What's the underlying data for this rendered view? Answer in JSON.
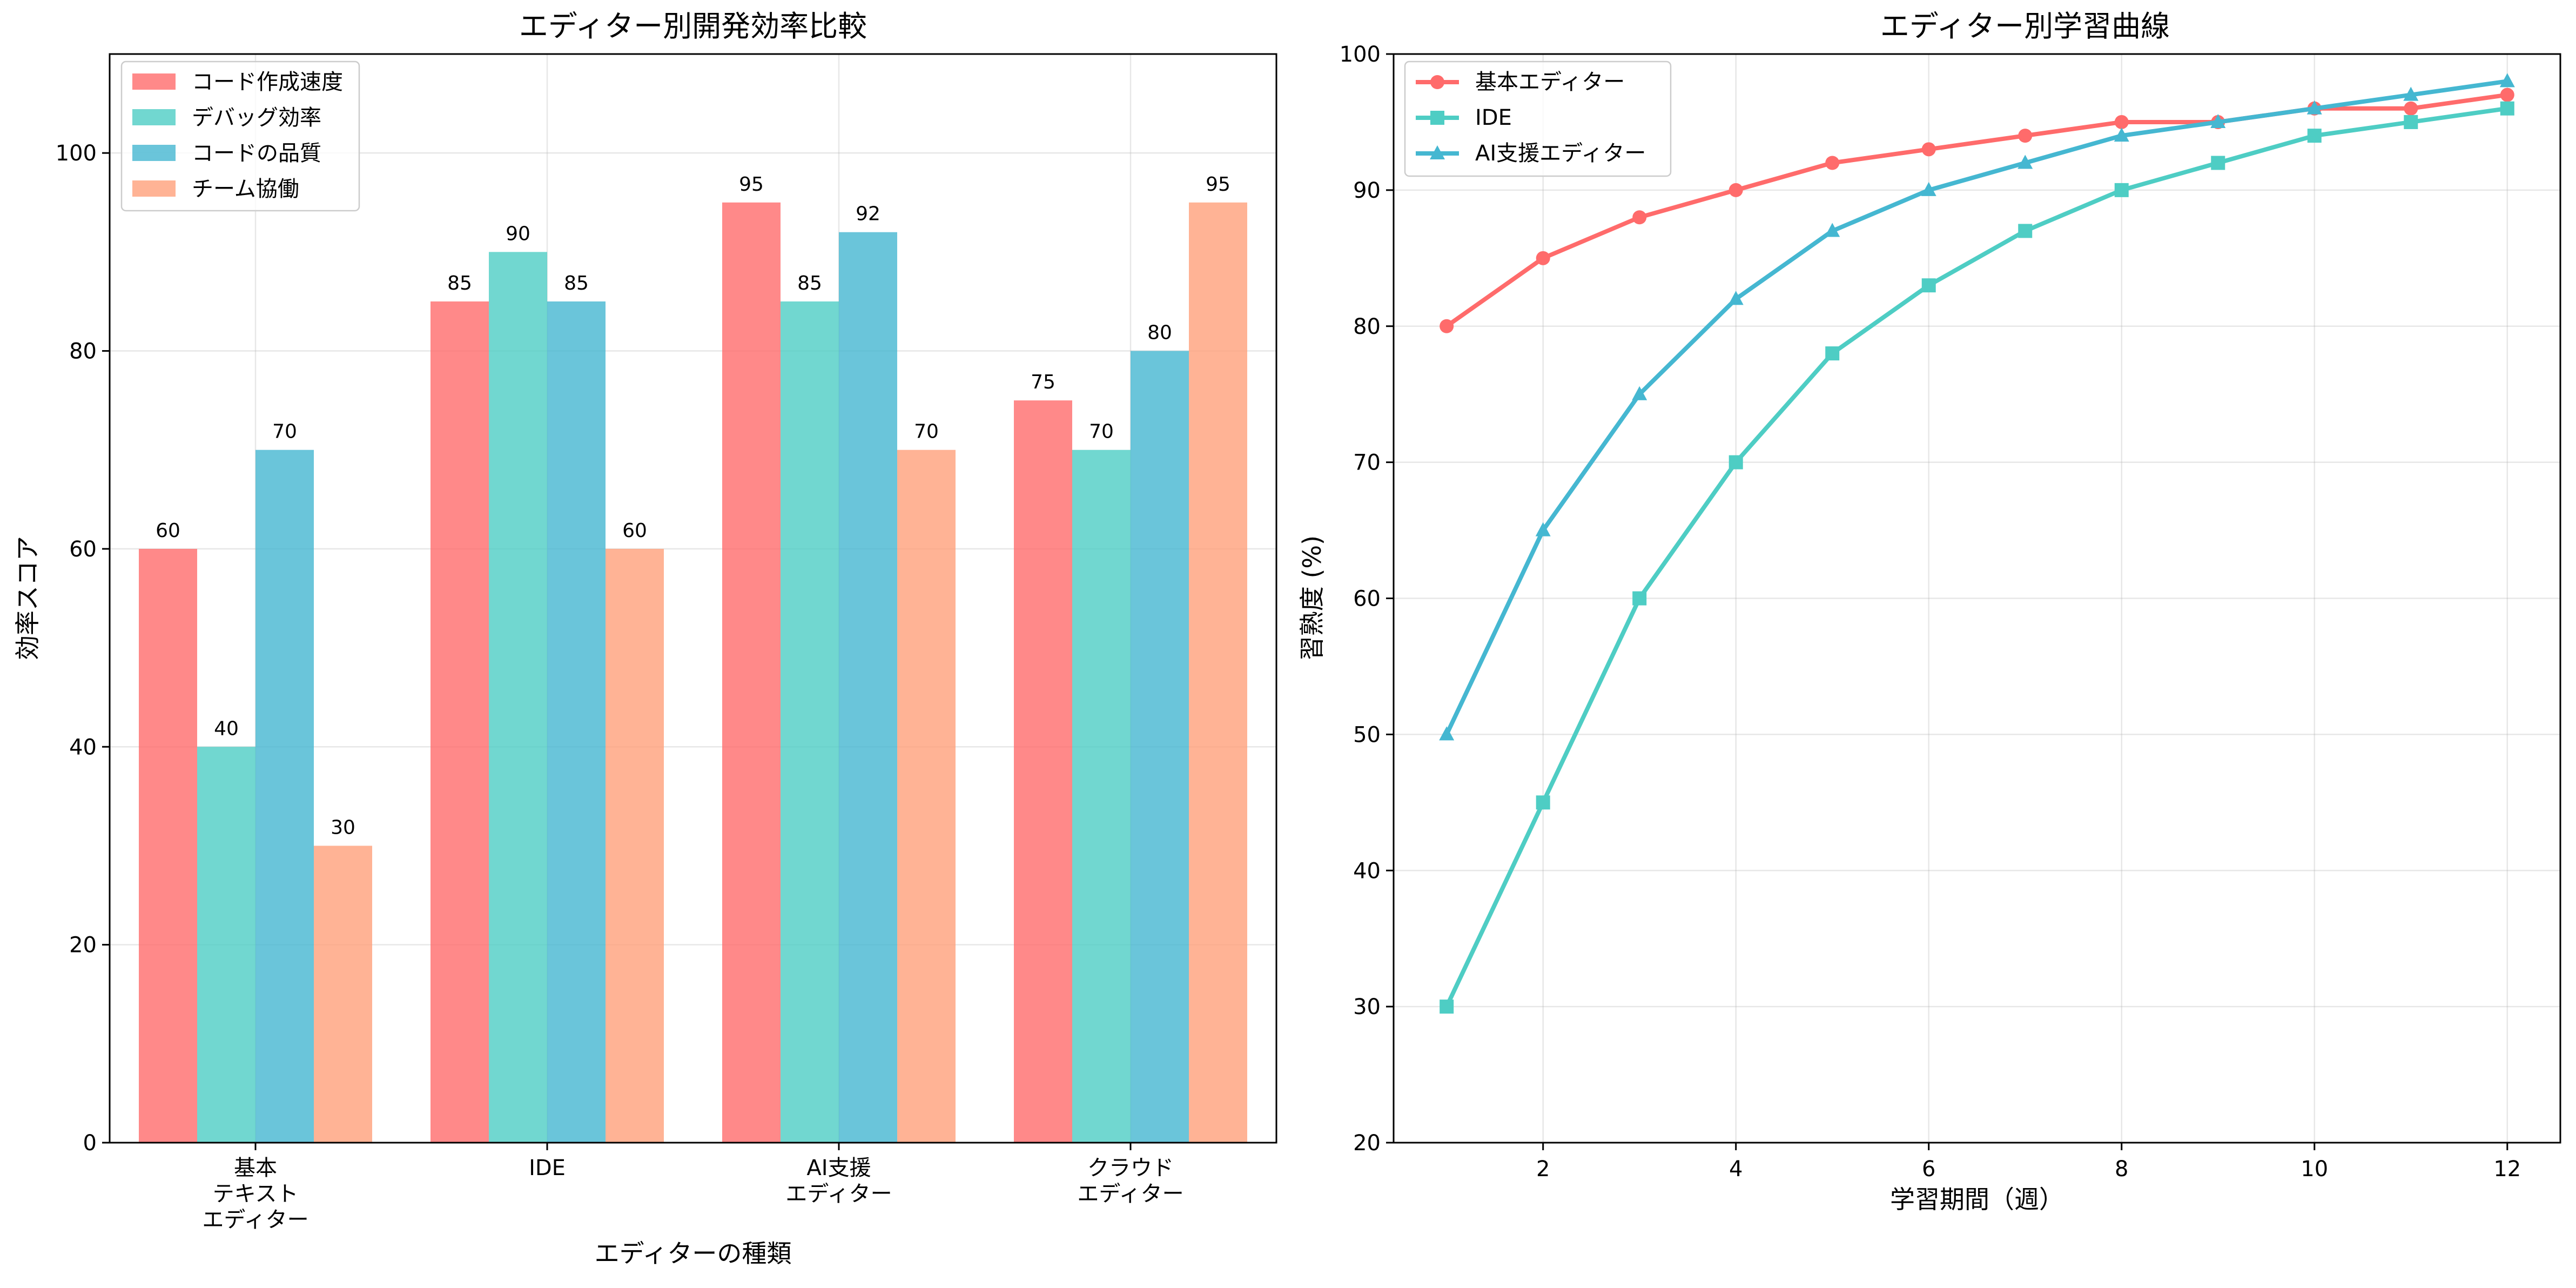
{
  "chart_data": [
    {
      "type": "bar",
      "title": "エディター別開発効率比較",
      "xlabel": "エディターの種類",
      "ylabel": "効率スコア",
      "categories": [
        "基本\nテキスト\nエディター",
        "IDE",
        "AI支援\nエディター",
        "クラウド\nエディター"
      ],
      "series": [
        {
          "name": "コード作成速度",
          "values": [
            60,
            85,
            95,
            75
          ],
          "color": "#FF6B6B"
        },
        {
          "name": "デバッグ効率",
          "values": [
            40,
            90,
            85,
            70
          ],
          "color": "#4ECDC4"
        },
        {
          "name": "コードの品質",
          "values": [
            70,
            85,
            92,
            80
          ],
          "color": "#45B7D1"
        },
        {
          "name": "チーム協働",
          "values": [
            30,
            60,
            70,
            95
          ],
          "color": "#FFA07A"
        }
      ],
      "ylim": [
        0,
        110
      ],
      "yticks": [
        0,
        20,
        40,
        60,
        80,
        100
      ],
      "grid": true,
      "legend": "top-left"
    },
    {
      "type": "line",
      "title": "エディター別学習曲線",
      "xlabel": "学習期間（週）",
      "ylabel": "習熟度 (%)",
      "x": [
        1,
        2,
        3,
        4,
        5,
        6,
        7,
        8,
        9,
        10,
        11,
        12
      ],
      "series": [
        {
          "name": "基本エディター",
          "values": [
            80,
            85,
            88,
            90,
            92,
            93,
            94,
            95,
            95,
            96,
            96,
            97
          ],
          "color": "#FF6B6B",
          "marker": "circle"
        },
        {
          "name": "IDE",
          "values": [
            30,
            45,
            60,
            70,
            78,
            83,
            87,
            90,
            92,
            94,
            95,
            96
          ],
          "color": "#4ECDC4",
          "marker": "square"
        },
        {
          "name": "AI支援エディター",
          "values": [
            50,
            65,
            75,
            82,
            87,
            90,
            92,
            94,
            95,
            96,
            97,
            98
          ],
          "color": "#45B7D1",
          "marker": "triangle"
        }
      ],
      "xlim": [
        0.45,
        12.55
      ],
      "ylim": [
        20,
        100
      ],
      "xticks": [
        2,
        4,
        6,
        8,
        10,
        12
      ],
      "yticks": [
        20,
        30,
        40,
        50,
        60,
        70,
        80,
        90,
        100
      ],
      "grid": true,
      "legend": "top-left"
    }
  ]
}
